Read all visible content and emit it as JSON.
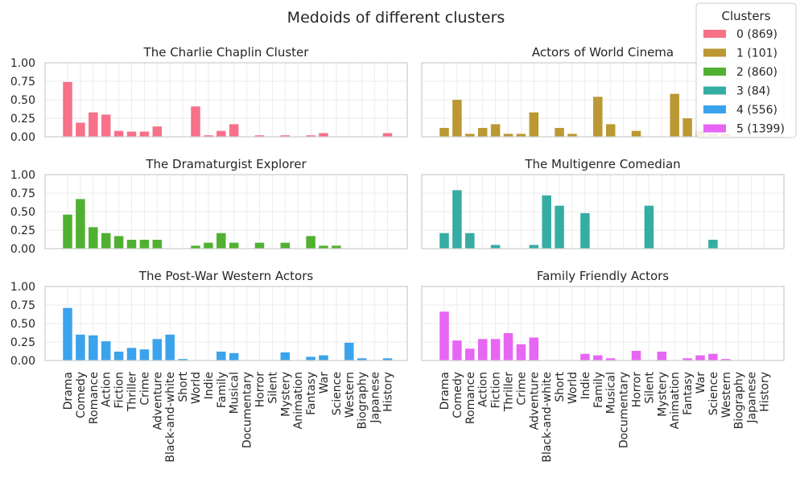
{
  "figure": {
    "suptitle": "Medoids of different clusters"
  },
  "legend": {
    "title": "Clusters",
    "placement": "top-right",
    "entries": [
      "0 (869)",
      "1 (101)",
      "2 (860)",
      "3 (84)",
      "4 (556)",
      "5 (1399)"
    ]
  },
  "chart_data": [
    {
      "type": "bar",
      "title": "The Charlie Chaplin Cluster",
      "color": "#f77189",
      "ylim": [
        0,
        1.0
      ],
      "yticks": [
        "0.00",
        "0.25",
        "0.50",
        "0.75",
        "1.00"
      ],
      "grid": true,
      "categories": [
        "Drama",
        "Comedy",
        "Romance",
        "Action",
        "Fiction",
        "Thriller",
        "Crime",
        "Adventure",
        "Black-and-white",
        "Short",
        "World",
        "Indie",
        "Family",
        "Musical",
        "Documentary",
        "Horror",
        "Silent",
        "Mystery",
        "Animation",
        "Fantasy",
        "War",
        "Science",
        "Western",
        "Biography",
        "Japanese",
        "History"
      ],
      "values": [
        0.74,
        0.19,
        0.33,
        0.3,
        0.08,
        0.07,
        0.07,
        0.14,
        0.0,
        0.0,
        0.41,
        0.02,
        0.08,
        0.17,
        0.0,
        0.02,
        0.0,
        0.02,
        0.0,
        0.02,
        0.05,
        0.0,
        0.0,
        0.0,
        0.0,
        0.05
      ]
    },
    {
      "type": "bar",
      "title": "Actors of World Cinema",
      "color": "#bb9832",
      "ylim": [
        0,
        1.0
      ],
      "yticks": [
        "0.00",
        "0.25",
        "0.50",
        "0.75",
        "1.00"
      ],
      "grid": true,
      "categories": [
        "Drama",
        "Comedy",
        "Romance",
        "Action",
        "Fiction",
        "Thriller",
        "Crime",
        "Adventure",
        "Black-and-white",
        "Short",
        "World",
        "Indie",
        "Family",
        "Musical",
        "Documentary",
        "Horror",
        "Silent",
        "Mystery",
        "Animation",
        "Fantasy",
        "War",
        "Science",
        "Western",
        "Biography",
        "Japanese",
        "History"
      ],
      "values": [
        0.12,
        0.5,
        0.04,
        0.12,
        0.17,
        0.04,
        0.04,
        0.33,
        0.0,
        0.12,
        0.04,
        0.0,
        0.54,
        0.17,
        0.0,
        0.08,
        0.0,
        0.0,
        0.58,
        0.25,
        0.08,
        0.04,
        0.04,
        0.0,
        0.0,
        0.0
      ]
    },
    {
      "type": "bar",
      "title": "The Dramaturgist Explorer",
      "color": "#50b131",
      "ylim": [
        0,
        1.0
      ],
      "yticks": [
        "0.00",
        "0.25",
        "0.50",
        "0.75",
        "1.00"
      ],
      "grid": true,
      "categories": [
        "Drama",
        "Comedy",
        "Romance",
        "Action",
        "Fiction",
        "Thriller",
        "Crime",
        "Adventure",
        "Black-and-white",
        "Short",
        "World",
        "Indie",
        "Family",
        "Musical",
        "Documentary",
        "Horror",
        "Silent",
        "Mystery",
        "Animation",
        "Fantasy",
        "War",
        "Science",
        "Western",
        "Biography",
        "Japanese",
        "History"
      ],
      "values": [
        0.46,
        0.67,
        0.29,
        0.21,
        0.17,
        0.12,
        0.12,
        0.12,
        0.0,
        0.0,
        0.04,
        0.08,
        0.21,
        0.08,
        0.0,
        0.08,
        0.0,
        0.08,
        0.0,
        0.17,
        0.04,
        0.04,
        0.0,
        0.0,
        0.0,
        0.0
      ]
    },
    {
      "type": "bar",
      "title": "The Multigenre Comedian",
      "color": "#36ada4",
      "ylim": [
        0,
        1.0
      ],
      "yticks": [
        "0.00",
        "0.25",
        "0.50",
        "0.75",
        "1.00"
      ],
      "grid": true,
      "categories": [
        "Drama",
        "Comedy",
        "Romance",
        "Action",
        "Fiction",
        "Thriller",
        "Crime",
        "Adventure",
        "Black-and-white",
        "Short",
        "World",
        "Indie",
        "Family",
        "Musical",
        "Documentary",
        "Horror",
        "Silent",
        "Mystery",
        "Animation",
        "Fantasy",
        "War",
        "Science",
        "Western",
        "Biography",
        "Japanese",
        "History"
      ],
      "values": [
        0.21,
        0.79,
        0.21,
        0.0,
        0.05,
        0.0,
        0.0,
        0.05,
        0.72,
        0.58,
        0.0,
        0.48,
        0.0,
        0.0,
        0.0,
        0.0,
        0.58,
        0.0,
        0.0,
        0.0,
        0.0,
        0.12,
        0.0,
        0.0,
        0.0,
        0.0
      ]
    },
    {
      "type": "bar",
      "title": "The Post-War Western Actors",
      "color": "#3ba3ec",
      "ylim": [
        0,
        1.0
      ],
      "yticks": [
        "0.00",
        "0.25",
        "0.50",
        "0.75",
        "1.00"
      ],
      "grid": true,
      "categories": [
        "Drama",
        "Comedy",
        "Romance",
        "Action",
        "Fiction",
        "Thriller",
        "Crime",
        "Adventure",
        "Black-and-white",
        "Short",
        "World",
        "Indie",
        "Family",
        "Musical",
        "Documentary",
        "Horror",
        "Silent",
        "Mystery",
        "Animation",
        "Fantasy",
        "War",
        "Science",
        "Western",
        "Biography",
        "Japanese",
        "History"
      ],
      "values": [
        0.71,
        0.35,
        0.34,
        0.26,
        0.12,
        0.17,
        0.15,
        0.29,
        0.35,
        0.02,
        0.0,
        0.0,
        0.12,
        0.1,
        0.0,
        0.0,
        0.0,
        0.11,
        0.0,
        0.05,
        0.07,
        0.0,
        0.24,
        0.03,
        0.0,
        0.03
      ]
    },
    {
      "type": "bar",
      "title": "Family Friendly Actors",
      "color": "#e866f4",
      "ylim": [
        0,
        1.0
      ],
      "yticks": [
        "0.00",
        "0.25",
        "0.50",
        "0.75",
        "1.00"
      ],
      "grid": true,
      "categories": [
        "Drama",
        "Comedy",
        "Romance",
        "Action",
        "Fiction",
        "Thriller",
        "Crime",
        "Adventure",
        "Black-and-white",
        "Short",
        "World",
        "Indie",
        "Family",
        "Musical",
        "Documentary",
        "Horror",
        "Silent",
        "Mystery",
        "Animation",
        "Fantasy",
        "War",
        "Science",
        "Western",
        "Biography",
        "Japanese",
        "History"
      ],
      "values": [
        0.66,
        0.27,
        0.16,
        0.29,
        0.29,
        0.37,
        0.22,
        0.31,
        0.0,
        0.0,
        0.0,
        0.09,
        0.07,
        0.03,
        0.0,
        0.13,
        0.0,
        0.12,
        0.0,
        0.03,
        0.07,
        0.09,
        0.02,
        0.0,
        0.0,
        0.0
      ]
    }
  ]
}
